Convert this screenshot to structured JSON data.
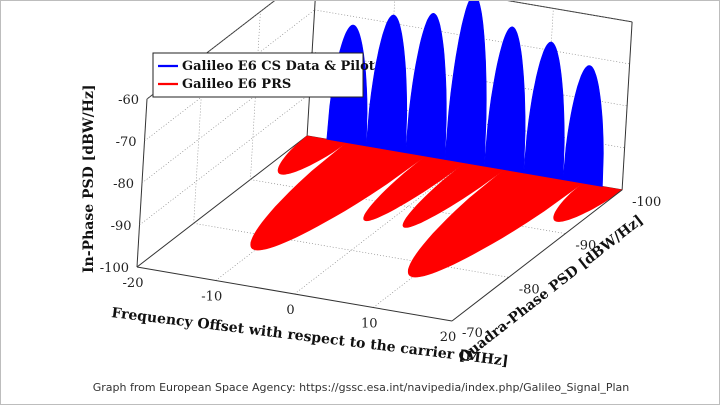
{
  "chart_data": {
    "type": "3d-psd",
    "legend": [
      {
        "name": "Galileo E6 CS Data & Pilot",
        "color": "#0000ff"
      },
      {
        "name": "Galileo E6 PRS",
        "color": "#ff0000"
      }
    ],
    "x_axis": {
      "label": "Frequency Offset with respect to the carrier [MHz]",
      "ticks": [
        "-20",
        "-10",
        "0",
        "10",
        "20"
      ],
      "range": [
        -20,
        20
      ]
    },
    "y_axis": {
      "label": "Quadra-Phase PSD [dBW/Hz]",
      "ticks": [
        "-70",
        "-80",
        "-90",
        "-100"
      ],
      "range": [
        -70,
        -100
      ]
    },
    "z_axis": {
      "label": "In-Phase PSD [dBW/Hz]",
      "ticks": [
        "-60",
        "-70",
        "-80",
        "-90",
        "-100"
      ],
      "range": [
        -100,
        -60
      ]
    },
    "cs_lobes": [
      {
        "x_from": -17.5,
        "x_to": -12.5,
        "peak": -72
      },
      {
        "x_from": -12.5,
        "x_to": -7.5,
        "peak": -68
      },
      {
        "x_from": -7.5,
        "x_to": -2.5,
        "peak": -66
      },
      {
        "x_from": -2.5,
        "x_to": 2.5,
        "peak": -60
      },
      {
        "x_from": 2.5,
        "x_to": 7.5,
        "peak": -66
      },
      {
        "x_from": 7.5,
        "x_to": 12.5,
        "peak": -68
      },
      {
        "x_from": 12.5,
        "x_to": 17.5,
        "peak": -72
      }
    ],
    "prs_lobes": [
      {
        "x_from": -20,
        "x_to": -15,
        "peak": -92
      },
      {
        "x_from": -15,
        "x_to": -5,
        "peak": -77
      },
      {
        "x_from": -5,
        "x_to": 0,
        "peak": -86
      },
      {
        "x_from": 0,
        "x_to": 5,
        "peak": -86
      },
      {
        "x_from": 5,
        "x_to": 15,
        "peak": -77
      },
      {
        "x_from": 15,
        "x_to": 20,
        "peak": -92
      }
    ]
  },
  "caption": "Graph from European Space Agency:  https://gssc.esa.int/navipedia/index.php/Galileo_Signal_Plan"
}
